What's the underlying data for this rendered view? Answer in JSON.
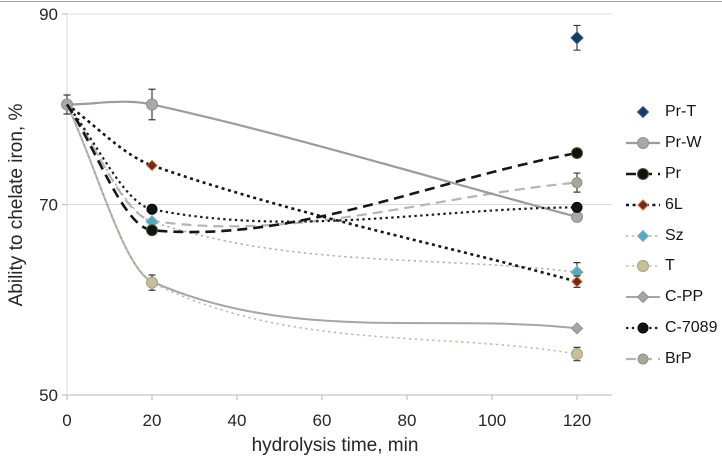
{
  "figure": {
    "x_axis_title": "hydrolysis time, min",
    "y_axis_title": "Ability to chelate iron, %"
  },
  "chart_data": {
    "type": "scatter",
    "title": "",
    "xlabel": "hydrolysis time, min",
    "ylabel": "Ability to chelate iron, %",
    "x_range": [
      0,
      120
    ],
    "y_range": [
      50,
      90
    ],
    "x_ticks": [
      0,
      20,
      40,
      60,
      80,
      100,
      120
    ],
    "y_ticks": [
      50,
      70,
      90
    ],
    "grid": "horizontal",
    "legend_position": "right",
    "axis_color": "#b7b7b7",
    "gridline_color": "#d9d9d9",
    "error_bar_color": "#3b3b3b",
    "series": [
      {
        "name": "Pr-T",
        "z": 9,
        "line": "none",
        "line_color": "#1b3a5e",
        "line_width": 0,
        "marker": "diamond",
        "marker_size": 6,
        "marker_color": "#1b3a5e",
        "marker_edge": "#2e5f8f",
        "points": [
          {
            "x": 120,
            "y": 87.5,
            "err": 1.3
          }
        ]
      },
      {
        "name": "Pr-W",
        "z": 6,
        "line": "solid",
        "line_color": "#9c9c9c",
        "line_width": 2.2,
        "marker": "circle",
        "marker_size": 5.5,
        "marker_color": "#a8a8a8",
        "marker_edge": "#8f8f8f",
        "points": [
          {
            "x": 0,
            "y": 80.5,
            "err": 1.0
          },
          {
            "x": 20,
            "y": 80.5,
            "err": 1.6
          },
          {
            "x": 120,
            "y": 68.7
          }
        ]
      },
      {
        "name": "Pr",
        "z": 8,
        "line": "dashed",
        "line_color": "#161616",
        "line_width": 2.6,
        "marker": "circle",
        "marker_size": 5.5,
        "marker_color": "#121212",
        "marker_edge": "#4e5c2a",
        "points": [
          {
            "x": 0,
            "y": 80.5,
            "marker": false
          },
          {
            "x": 20,
            "y": 67.3
          },
          {
            "x": 120,
            "y": 75.4
          }
        ]
      },
      {
        "name": "6L",
        "z": 5,
        "line": "dotted-bold",
        "line_color": "#161616",
        "line_width": 2.6,
        "marker": "diamond",
        "marker_size": 5,
        "marker_color": "#6f2b1e",
        "marker_edge": "#c9662a",
        "points": [
          {
            "x": 0,
            "y": 80.5,
            "marker": false
          },
          {
            "x": 20,
            "y": 74.1
          },
          {
            "x": 120,
            "y": 61.9,
            "err": 0.6
          }
        ]
      },
      {
        "name": "Sz",
        "z": 4,
        "line": "dotted",
        "line_color": "#b3b3b3",
        "line_width": 1.6,
        "marker": "diamond",
        "marker_size": 6,
        "marker_color": "#4bacc6",
        "marker_edge": "#9aabb0",
        "points": [
          {
            "x": 0,
            "y": 80.5,
            "marker": false
          },
          {
            "x": 20,
            "y": 68.2
          },
          {
            "x": 120,
            "y": 62.9,
            "err": 1.0
          }
        ]
      },
      {
        "name": "T",
        "z": 2,
        "line": "dotted",
        "line_color": "#c3bea1",
        "line_width": 1.6,
        "marker": "circle",
        "marker_size": 5.5,
        "marker_color": "#c5bf9b",
        "marker_edge": "#a8a27d",
        "points": [
          {
            "x": 0,
            "y": 80.5,
            "marker": false
          },
          {
            "x": 20,
            "y": 61.8,
            "err": 0.8
          },
          {
            "x": 120,
            "y": 54.3,
            "err": 0.7
          }
        ]
      },
      {
        "name": "C-PP",
        "z": 1,
        "line": "solid",
        "line_color": "#a6a6a6",
        "line_width": 2,
        "marker": "diamond",
        "marker_size": 5.5,
        "marker_color": "#a6a6a6",
        "marker_edge": "#8f8f8f",
        "points": [
          {
            "x": 0,
            "y": 80.5,
            "marker": false
          },
          {
            "x": 20,
            "y": 61.9
          },
          {
            "x": 120,
            "y": 57.0
          }
        ]
      },
      {
        "name": "C-7089",
        "z": 7,
        "line": "dotted",
        "line_color": "#1c1c1c",
        "line_width": 2.2,
        "marker": "circle",
        "marker_size": 5,
        "marker_color": "#141414",
        "marker_edge": "#000000",
        "points": [
          {
            "x": 0,
            "y": 80.5,
            "marker": false
          },
          {
            "x": 20,
            "y": 69.5
          },
          {
            "x": 120,
            "y": 69.7
          }
        ]
      },
      {
        "name": "BrP",
        "z": 3,
        "line": "dashed",
        "line_color": "#b5b5b5",
        "line_width": 2.2,
        "marker": "circle",
        "marker_size": 5,
        "marker_color": "#a7a899",
        "marker_edge": "#90917e",
        "points": [
          {
            "x": 0,
            "y": 80.5,
            "marker": false
          },
          {
            "x": 20,
            "y": 68.3,
            "marker": false
          },
          {
            "x": 120,
            "y": 72.3,
            "err": 1.0
          }
        ]
      }
    ]
  }
}
